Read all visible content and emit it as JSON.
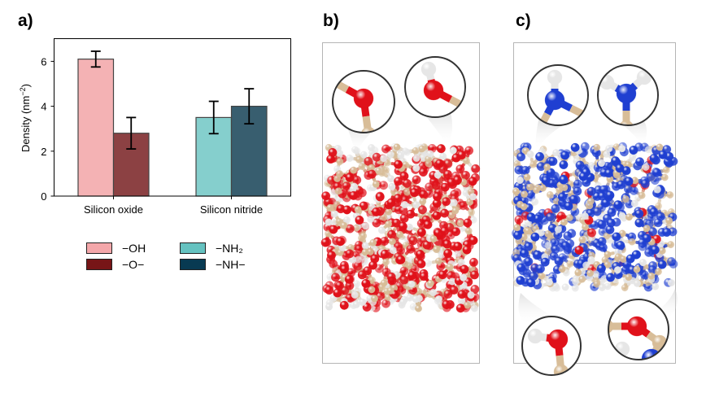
{
  "panels": {
    "a": {
      "label": "a)"
    },
    "b": {
      "label": "b)"
    },
    "c": {
      "label": "c)"
    }
  },
  "chart_data": {
    "type": "bar",
    "title": "",
    "xlabel": "",
    "ylabel": "Density (nm⁻²)",
    "ylim": [
      0,
      7
    ],
    "yticks": [
      0,
      2,
      4,
      6
    ],
    "grid": false,
    "categories": [
      "Silicon oxide",
      "Silicon nitride"
    ],
    "series": [
      {
        "name": "−OH",
        "category": "Silicon oxide",
        "value": 6.1,
        "error": 0.35,
        "color": "#f4b2b4"
      },
      {
        "name": "−O−",
        "category": "Silicon oxide",
        "value": 2.8,
        "error": 0.7,
        "color": "#8c4143"
      },
      {
        "name": "−NH₂",
        "category": "Silicon nitride",
        "value": 3.5,
        "error": 0.72,
        "color": "#85cfcd"
      },
      {
        "name": "−NH−",
        "category": "Silicon nitride",
        "value": 4.0,
        "error": 0.78,
        "color": "#385e6f"
      }
    ],
    "legend": {
      "position": "below",
      "entries": [
        {
          "label": "−OH",
          "color": "#f4a7aa"
        },
        {
          "label": "−O−",
          "color": "#771517"
        },
        {
          "label": "−NH₂",
          "color": "#65c2c0"
        },
        {
          "label": "−NH−",
          "color": "#083a52"
        }
      ]
    }
  },
  "colors": {
    "oxygen": "#e0111a",
    "silicon": "#d8bd98",
    "hydrogen": "#e6e6e6",
    "nitrogen": "#1f3fd1",
    "box_border": "#b5b5b5",
    "inset_ring": "#333333"
  },
  "simulations": {
    "b": {
      "description": "Silicon oxide slab with surface insets: bridging -O- and terminal -OH"
    },
    "c": {
      "description": "Silicon nitride slab with surface insets: -NH- and -NH2 (top), -OH and -O- (bottom)"
    }
  }
}
